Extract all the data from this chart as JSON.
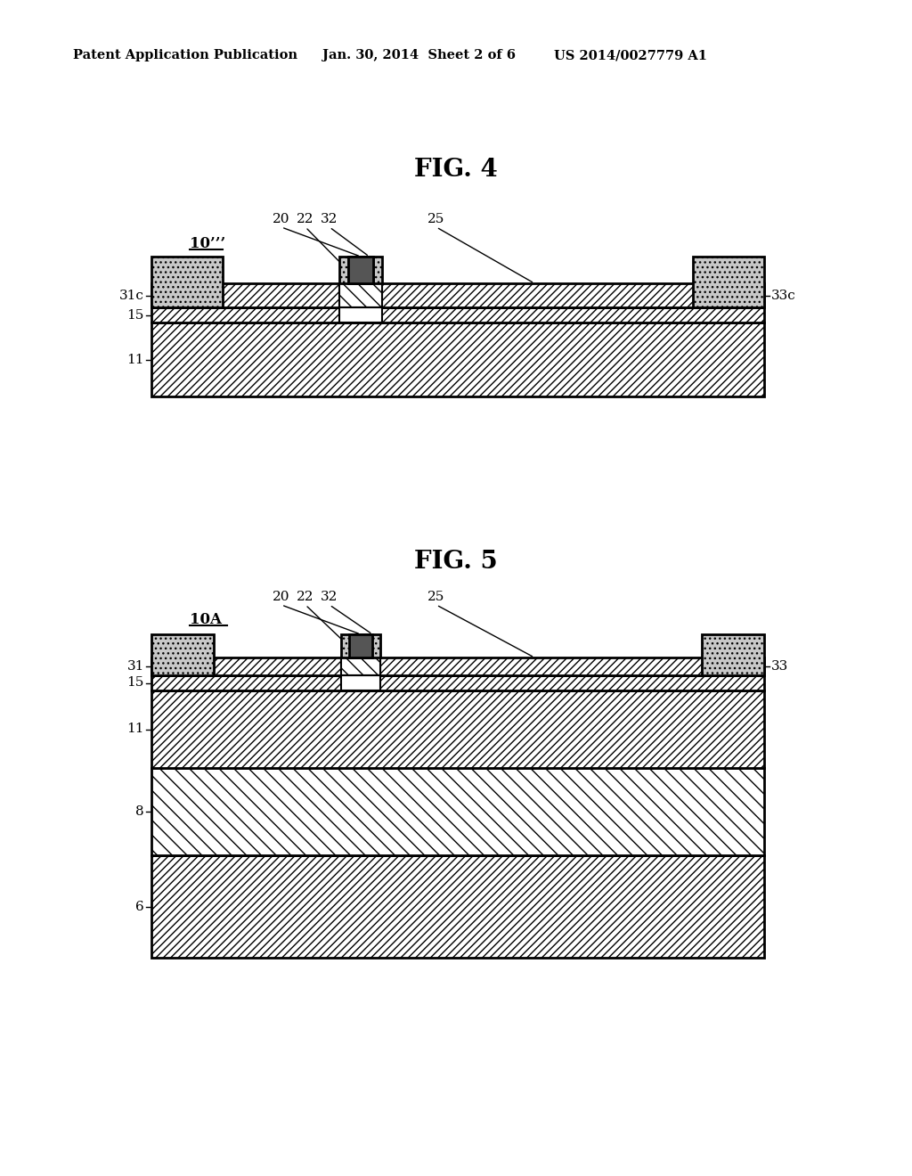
{
  "bg_color": "#ffffff",
  "header_text": "Patent Application Publication",
  "header_date": "Jan. 30, 2014  Sheet 2 of 6",
  "header_patent": "US 2014/0027779 A1",
  "fig4_title": "FIG. 4",
  "fig5_title": "FIG. 5",
  "fig4_label": "10’’’",
  "fig5_label": "10A",
  "line_color": "#000000"
}
